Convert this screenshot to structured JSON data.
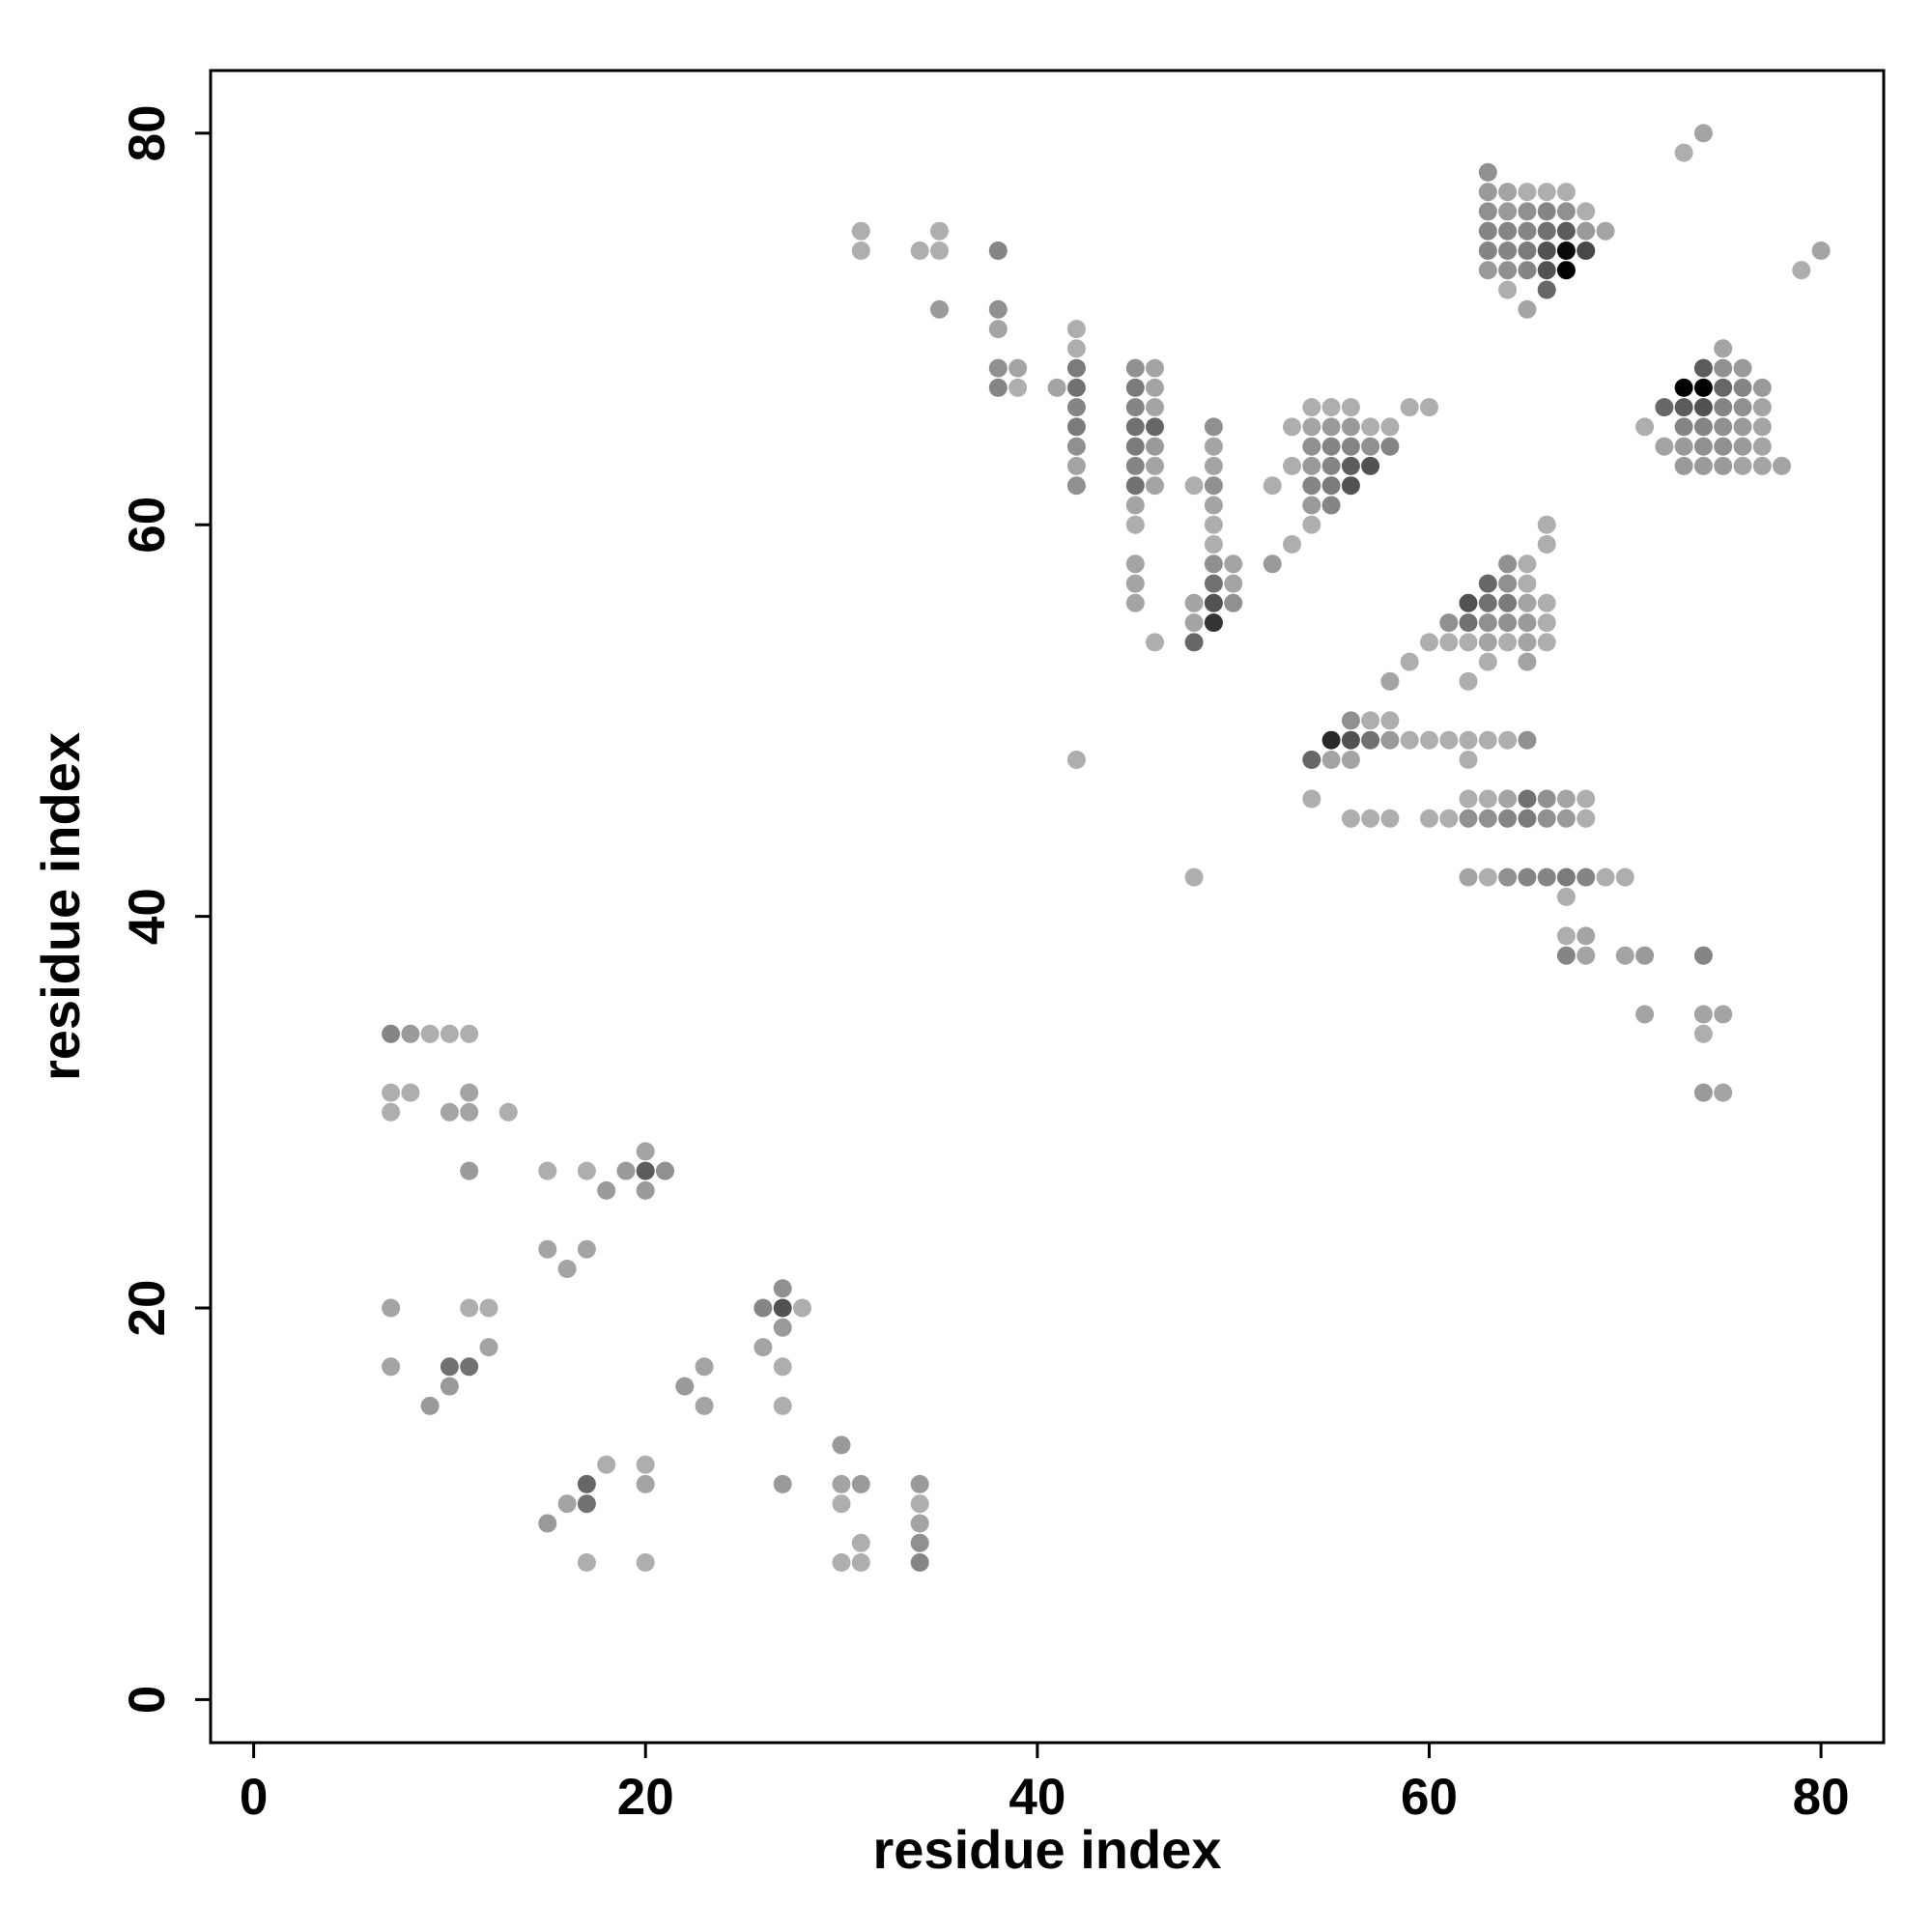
{
  "chart_data": {
    "type": "scatter",
    "title": "",
    "xlabel": "residue index",
    "ylabel": "residue index",
    "xlim": [
      -2.2,
      83.2
    ],
    "ylim": [
      -2.2,
      83.2
    ],
    "xticks": [
      0,
      20,
      40,
      60,
      80
    ],
    "yticks": [
      0,
      20,
      40,
      60,
      80
    ],
    "grid": false,
    "legend": "none",
    "value_meaning": "marker darkness, 0 = lightest grey, 1 = black",
    "points": [
      [
        7,
        34,
        0.35
      ],
      [
        8,
        34,
        0.25
      ],
      [
        9,
        34,
        0.15
      ],
      [
        10,
        34,
        0.15
      ],
      [
        11,
        34,
        0.15
      ],
      [
        7,
        31,
        0.15
      ],
      [
        8,
        31,
        0.15
      ],
      [
        11,
        31,
        0.2
      ],
      [
        7,
        30,
        0.15
      ],
      [
        10,
        30,
        0.2
      ],
      [
        11,
        30,
        0.2
      ],
      [
        13,
        30,
        0.15
      ],
      [
        11,
        27,
        0.25
      ],
      [
        15,
        27,
        0.15
      ],
      [
        17,
        27,
        0.15
      ],
      [
        19,
        27,
        0.25
      ],
      [
        20,
        27,
        0.55
      ],
      [
        21,
        27,
        0.3
      ],
      [
        20,
        28,
        0.2
      ],
      [
        20,
        26,
        0.25
      ],
      [
        18,
        26,
        0.25
      ],
      [
        15,
        23,
        0.2
      ],
      [
        17,
        23,
        0.2
      ],
      [
        16,
        22,
        0.2
      ],
      [
        7,
        20,
        0.2
      ],
      [
        11,
        20,
        0.15
      ],
      [
        12,
        20,
        0.15
      ],
      [
        26,
        20,
        0.35
      ],
      [
        27,
        20,
        0.6
      ],
      [
        28,
        20,
        0.15
      ],
      [
        27,
        21,
        0.3
      ],
      [
        27,
        19,
        0.25
      ],
      [
        7,
        17,
        0.2
      ],
      [
        10,
        17,
        0.45
      ],
      [
        11,
        17,
        0.45
      ],
      [
        12,
        18,
        0.2
      ],
      [
        9,
        15,
        0.25
      ],
      [
        10,
        16,
        0.25
      ],
      [
        26,
        18,
        0.2
      ],
      [
        27,
        17,
        0.15
      ],
      [
        22,
        16,
        0.25
      ],
      [
        23,
        17,
        0.2
      ],
      [
        23,
        15,
        0.2
      ],
      [
        27,
        15,
        0.15
      ],
      [
        18,
        12,
        0.15
      ],
      [
        17,
        11,
        0.5
      ],
      [
        17,
        10,
        0.45
      ],
      [
        16,
        10,
        0.2
      ],
      [
        15,
        9,
        0.25
      ],
      [
        20,
        12,
        0.15
      ],
      [
        20,
        11,
        0.2
      ],
      [
        17,
        7,
        0.15
      ],
      [
        20,
        7,
        0.15
      ],
      [
        27,
        11,
        0.25
      ],
      [
        30,
        13,
        0.25
      ],
      [
        30,
        11,
        0.2
      ],
      [
        31,
        11,
        0.25
      ],
      [
        30,
        10,
        0.15
      ],
      [
        31,
        8,
        0.15
      ],
      [
        30,
        7,
        0.15
      ],
      [
        31,
        7,
        0.15
      ],
      [
        34,
        11,
        0.25
      ],
      [
        34,
        10,
        0.15
      ],
      [
        34,
        9,
        0.2
      ],
      [
        34,
        8,
        0.3
      ],
      [
        34,
        7,
        0.35
      ],
      [
        31,
        75,
        0.15
      ],
      [
        31,
        74,
        0.15
      ],
      [
        34,
        74,
        0.15
      ],
      [
        35,
        75,
        0.15
      ],
      [
        35,
        74,
        0.15
      ],
      [
        35,
        71,
        0.25
      ],
      [
        38,
        74,
        0.35
      ],
      [
        38,
        71,
        0.3
      ],
      [
        38,
        70,
        0.2
      ],
      [
        38,
        68,
        0.3
      ],
      [
        39,
        68,
        0.2
      ],
      [
        38,
        67,
        0.35
      ],
      [
        39,
        67,
        0.15
      ],
      [
        41,
        67,
        0.2
      ],
      [
        42,
        70,
        0.15
      ],
      [
        42,
        69,
        0.15
      ],
      [
        42,
        68,
        0.4
      ],
      [
        42,
        67,
        0.45
      ],
      [
        42,
        66,
        0.35
      ],
      [
        42,
        65,
        0.4
      ],
      [
        42,
        64,
        0.3
      ],
      [
        42,
        63,
        0.2
      ],
      [
        42,
        62,
        0.3
      ],
      [
        42,
        48,
        0.15
      ],
      [
        45,
        68,
        0.3
      ],
      [
        46,
        68,
        0.2
      ],
      [
        45,
        67,
        0.4
      ],
      [
        46,
        67,
        0.2
      ],
      [
        45,
        66,
        0.35
      ],
      [
        46,
        66,
        0.2
      ],
      [
        45,
        65,
        0.45
      ],
      [
        46,
        65,
        0.5
      ],
      [
        45,
        64,
        0.4
      ],
      [
        46,
        64,
        0.25
      ],
      [
        45,
        63,
        0.35
      ],
      [
        46,
        63,
        0.2
      ],
      [
        45,
        62,
        0.45
      ],
      [
        46,
        62,
        0.2
      ],
      [
        45,
        61,
        0.2
      ],
      [
        45,
        60,
        0.15
      ],
      [
        45,
        58,
        0.2
      ],
      [
        45,
        57,
        0.2
      ],
      [
        45,
        56,
        0.2
      ],
      [
        46,
        54,
        0.15
      ],
      [
        48,
        62,
        0.15
      ],
      [
        49,
        65,
        0.3
      ],
      [
        49,
        64,
        0.2
      ],
      [
        49,
        63,
        0.2
      ],
      [
        49,
        62,
        0.3
      ],
      [
        49,
        61,
        0.2
      ],
      [
        49,
        60,
        0.15
      ],
      [
        49,
        59,
        0.15
      ],
      [
        49,
        58,
        0.3
      ],
      [
        50,
        58,
        0.2
      ],
      [
        49,
        57,
        0.45
      ],
      [
        50,
        57,
        0.2
      ],
      [
        48,
        56,
        0.2
      ],
      [
        49,
        56,
        0.6
      ],
      [
        50,
        56,
        0.3
      ],
      [
        48,
        55,
        0.2
      ],
      [
        49,
        55,
        0.75
      ],
      [
        48,
        54,
        0.5
      ],
      [
        52,
        62,
        0.15
      ],
      [
        52,
        58,
        0.25
      ],
      [
        53,
        59,
        0.15
      ],
      [
        53,
        63,
        0.15
      ],
      [
        53,
        65,
        0.15
      ],
      [
        54,
        66,
        0.15
      ],
      [
        55,
        66,
        0.15
      ],
      [
        56,
        66,
        0.15
      ],
      [
        59,
        66,
        0.15
      ],
      [
        60,
        66,
        0.15
      ],
      [
        54,
        65,
        0.2
      ],
      [
        55,
        65,
        0.25
      ],
      [
        56,
        65,
        0.25
      ],
      [
        57,
        65,
        0.15
      ],
      [
        58,
        65,
        0.15
      ],
      [
        54,
        64,
        0.3
      ],
      [
        55,
        64,
        0.35
      ],
      [
        56,
        64,
        0.35
      ],
      [
        57,
        64,
        0.3
      ],
      [
        58,
        64,
        0.35
      ],
      [
        54,
        63,
        0.25
      ],
      [
        55,
        63,
        0.35
      ],
      [
        56,
        63,
        0.55
      ],
      [
        57,
        63,
        0.6
      ],
      [
        54,
        62,
        0.35
      ],
      [
        55,
        62,
        0.4
      ],
      [
        56,
        62,
        0.6
      ],
      [
        54,
        61,
        0.25
      ],
      [
        55,
        61,
        0.35
      ],
      [
        54,
        60,
        0.15
      ],
      [
        54,
        48,
        0.5
      ],
      [
        55,
        48,
        0.2
      ],
      [
        56,
        48,
        0.2
      ],
      [
        55,
        49,
        0.8
      ],
      [
        56,
        49,
        0.6
      ],
      [
        57,
        49,
        0.45
      ],
      [
        58,
        49,
        0.25
      ],
      [
        59,
        49,
        0.15
      ],
      [
        60,
        49,
        0.15
      ],
      [
        61,
        49,
        0.15
      ],
      [
        62,
        49,
        0.15
      ],
      [
        63,
        49,
        0.15
      ],
      [
        64,
        49,
        0.15
      ],
      [
        65,
        49,
        0.3
      ],
      [
        56,
        50,
        0.3
      ],
      [
        57,
        50,
        0.15
      ],
      [
        58,
        50,
        0.15
      ],
      [
        62,
        48,
        0.15
      ],
      [
        58,
        52,
        0.2
      ],
      [
        59,
        53,
        0.15
      ],
      [
        60,
        54,
        0.15
      ],
      [
        61,
        54,
        0.15
      ],
      [
        62,
        54,
        0.15
      ],
      [
        63,
        54,
        0.2
      ],
      [
        64,
        54,
        0.15
      ],
      [
        65,
        54,
        0.2
      ],
      [
        66,
        54,
        0.15
      ],
      [
        61,
        55,
        0.3
      ],
      [
        62,
        55,
        0.45
      ],
      [
        63,
        55,
        0.3
      ],
      [
        64,
        55,
        0.3
      ],
      [
        65,
        55,
        0.25
      ],
      [
        66,
        55,
        0.15
      ],
      [
        62,
        56,
        0.6
      ],
      [
        63,
        56,
        0.45
      ],
      [
        64,
        56,
        0.4
      ],
      [
        65,
        56,
        0.2
      ],
      [
        66,
        56,
        0.15
      ],
      [
        63,
        57,
        0.5
      ],
      [
        64,
        57,
        0.3
      ],
      [
        65,
        57,
        0.15
      ],
      [
        64,
        58,
        0.3
      ],
      [
        65,
        58,
        0.15
      ],
      [
        62,
        52,
        0.15
      ],
      [
        63,
        53,
        0.15
      ],
      [
        65,
        53,
        0.2
      ],
      [
        66,
        59,
        0.15
      ],
      [
        66,
        60,
        0.15
      ],
      [
        54,
        46,
        0.15
      ],
      [
        56,
        45,
        0.15
      ],
      [
        57,
        45,
        0.15
      ],
      [
        58,
        45,
        0.15
      ],
      [
        60,
        45,
        0.15
      ],
      [
        61,
        45,
        0.15
      ],
      [
        62,
        45,
        0.3
      ],
      [
        63,
        45,
        0.3
      ],
      [
        64,
        45,
        0.35
      ],
      [
        65,
        45,
        0.4
      ],
      [
        66,
        45,
        0.3
      ],
      [
        67,
        45,
        0.25
      ],
      [
        68,
        45,
        0.15
      ],
      [
        62,
        46,
        0.15
      ],
      [
        63,
        46,
        0.15
      ],
      [
        64,
        46,
        0.2
      ],
      [
        65,
        46,
        0.45
      ],
      [
        66,
        46,
        0.3
      ],
      [
        67,
        46,
        0.2
      ],
      [
        68,
        46,
        0.15
      ],
      [
        48,
        42,
        0.15
      ],
      [
        62,
        42,
        0.2
      ],
      [
        63,
        42,
        0.15
      ],
      [
        64,
        42,
        0.3
      ],
      [
        65,
        42,
        0.35
      ],
      [
        66,
        42,
        0.35
      ],
      [
        67,
        42,
        0.4
      ],
      [
        68,
        42,
        0.35
      ],
      [
        69,
        42,
        0.15
      ],
      [
        70,
        42,
        0.15
      ],
      [
        67,
        41,
        0.15
      ],
      [
        67,
        39,
        0.15
      ],
      [
        68,
        39,
        0.2
      ],
      [
        67,
        38,
        0.35
      ],
      [
        68,
        38,
        0.2
      ],
      [
        70,
        38,
        0.2
      ],
      [
        71,
        38,
        0.25
      ],
      [
        74,
        38,
        0.35
      ],
      [
        71,
        35,
        0.2
      ],
      [
        74,
        35,
        0.2
      ],
      [
        75,
        35,
        0.2
      ],
      [
        74,
        34,
        0.15
      ],
      [
        74,
        31,
        0.25
      ],
      [
        75,
        31,
        0.2
      ],
      [
        63,
        78,
        0.3
      ],
      [
        63,
        77,
        0.25
      ],
      [
        64,
        77,
        0.2
      ],
      [
        65,
        77,
        0.15
      ],
      [
        66,
        77,
        0.15
      ],
      [
        67,
        77,
        0.15
      ],
      [
        63,
        76,
        0.3
      ],
      [
        64,
        76,
        0.25
      ],
      [
        65,
        76,
        0.3
      ],
      [
        66,
        76,
        0.35
      ],
      [
        67,
        76,
        0.3
      ],
      [
        68,
        76,
        0.15
      ],
      [
        63,
        75,
        0.35
      ],
      [
        64,
        75,
        0.35
      ],
      [
        65,
        75,
        0.35
      ],
      [
        66,
        75,
        0.45
      ],
      [
        67,
        75,
        0.55
      ],
      [
        68,
        75,
        0.25
      ],
      [
        69,
        75,
        0.2
      ],
      [
        63,
        74,
        0.35
      ],
      [
        64,
        74,
        0.35
      ],
      [
        65,
        74,
        0.4
      ],
      [
        66,
        74,
        0.6
      ],
      [
        67,
        74,
        0.95
      ],
      [
        68,
        74,
        0.65
      ],
      [
        63,
        73,
        0.25
      ],
      [
        64,
        73,
        0.3
      ],
      [
        65,
        73,
        0.35
      ],
      [
        66,
        73,
        0.6
      ],
      [
        67,
        73,
        1.0
      ],
      [
        64,
        72,
        0.15
      ],
      [
        66,
        72,
        0.5
      ],
      [
        65,
        71,
        0.2
      ],
      [
        73,
        79,
        0.15
      ],
      [
        74,
        80,
        0.2
      ],
      [
        79,
        73,
        0.15
      ],
      [
        80,
        74,
        0.2
      ],
      [
        75,
        69,
        0.2
      ],
      [
        74,
        68,
        0.55
      ],
      [
        75,
        68,
        0.3
      ],
      [
        76,
        68,
        0.25
      ],
      [
        73,
        67,
        1.0
      ],
      [
        74,
        67,
        1.0
      ],
      [
        75,
        67,
        0.5
      ],
      [
        76,
        67,
        0.35
      ],
      [
        77,
        67,
        0.25
      ],
      [
        72,
        66,
        0.5
      ],
      [
        73,
        66,
        0.55
      ],
      [
        74,
        66,
        0.6
      ],
      [
        75,
        66,
        0.35
      ],
      [
        76,
        66,
        0.3
      ],
      [
        77,
        66,
        0.2
      ],
      [
        71,
        65,
        0.15
      ],
      [
        73,
        65,
        0.35
      ],
      [
        74,
        65,
        0.35
      ],
      [
        75,
        65,
        0.3
      ],
      [
        76,
        65,
        0.25
      ],
      [
        77,
        65,
        0.2
      ],
      [
        72,
        64,
        0.2
      ],
      [
        73,
        64,
        0.25
      ],
      [
        74,
        64,
        0.3
      ],
      [
        75,
        64,
        0.3
      ],
      [
        76,
        64,
        0.25
      ],
      [
        77,
        64,
        0.2
      ],
      [
        73,
        63,
        0.25
      ],
      [
        74,
        63,
        0.25
      ],
      [
        75,
        63,
        0.25
      ],
      [
        76,
        63,
        0.2
      ],
      [
        77,
        63,
        0.2
      ],
      [
        78,
        63,
        0.2
      ]
    ]
  }
}
